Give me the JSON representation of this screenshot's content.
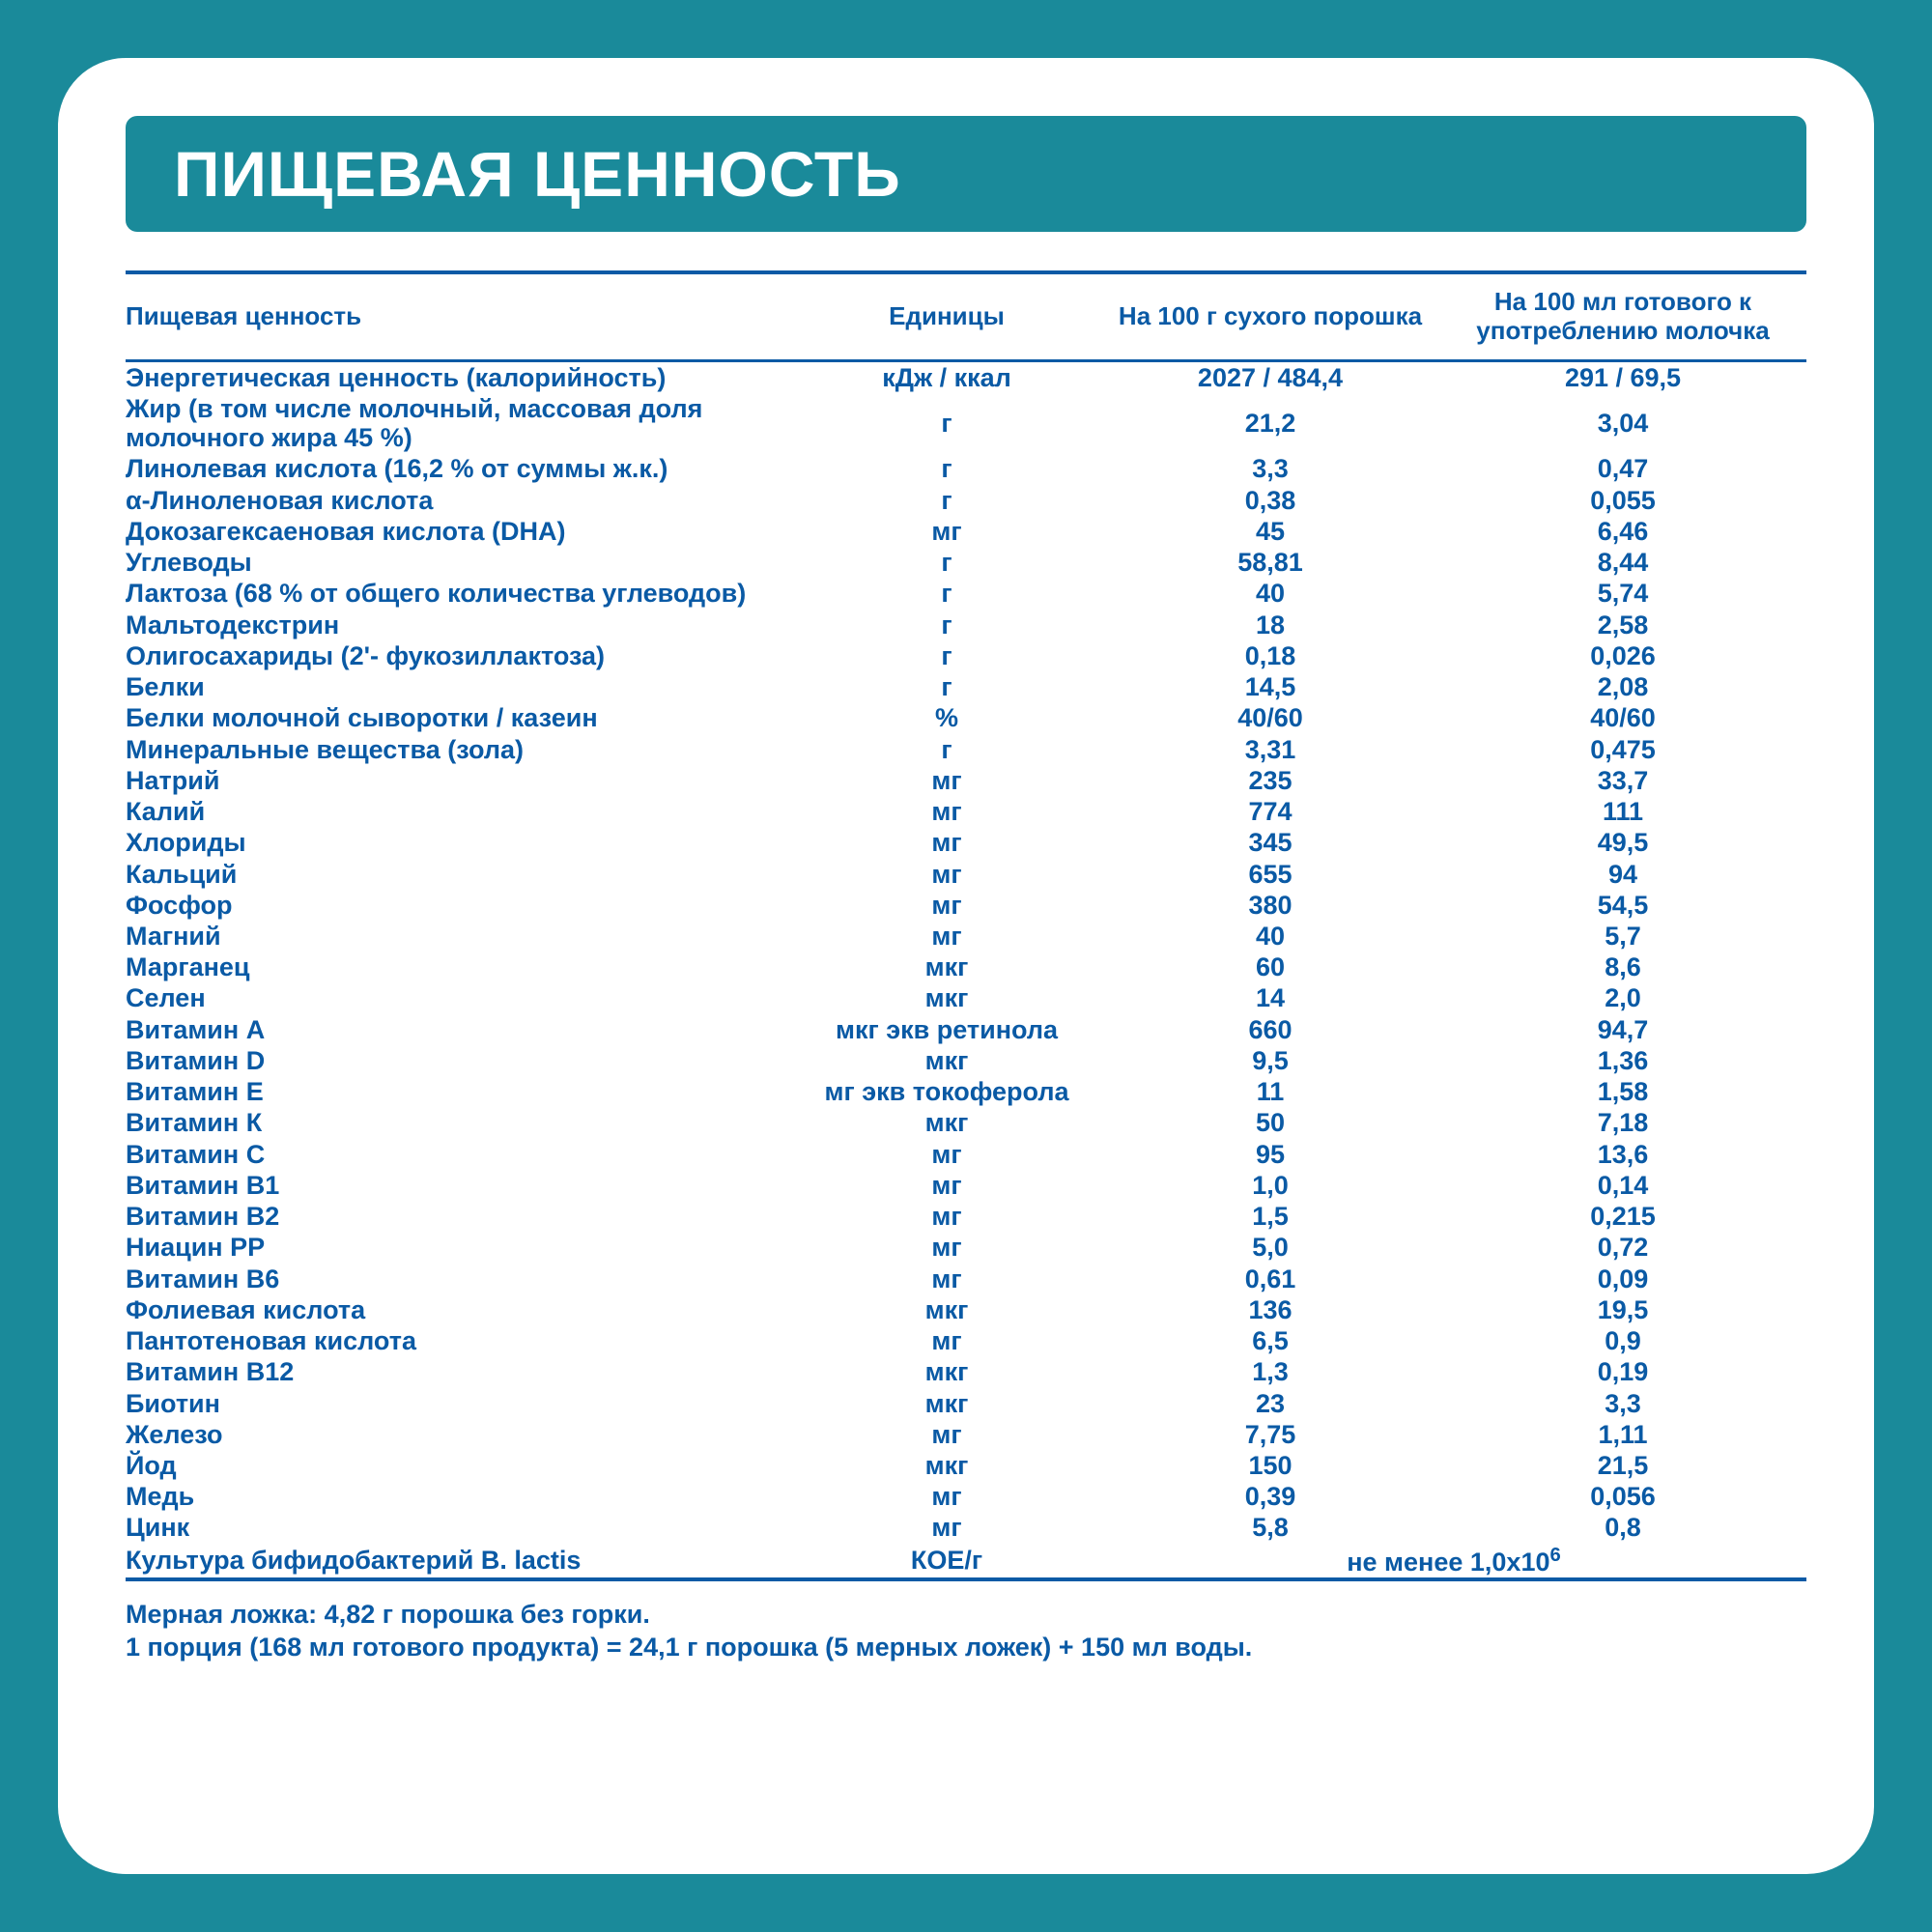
{
  "colors": {
    "teal": "#1a8a9a",
    "blue": "#0a5aa5",
    "white": "#ffffff"
  },
  "title": "ПИЩЕВАЯ ЦЕННОСТЬ",
  "columns": [
    "Пищевая ценность",
    "Единицы",
    "На 100 г сухого порошка",
    "На 100 мл готового к употреблению\nмолочка"
  ],
  "rows": [
    {
      "name": "Энергетическая ценность (калорийность)",
      "unit": "кДж / ккал",
      "v1": "2027 / 484,4",
      "v2": "291 / 69,5"
    },
    {
      "name": "Жир (в том числе молочный, массовая доля\nмолочного жира 45 %)",
      "unit": "г",
      "v1": "21,2",
      "v2": "3,04"
    },
    {
      "name": "Линолевая кислота (16,2 % от суммы ж.к.)",
      "unit": "г",
      "v1": "3,3",
      "v2": "0,47"
    },
    {
      "name": "α-Линоленовая кислота",
      "unit": "г",
      "v1": "0,38",
      "v2": "0,055"
    },
    {
      "name": "Докозагексаеновая кислота (DHA)",
      "unit": "мг",
      "v1": "45",
      "v2": "6,46"
    },
    {
      "name": "Углеводы",
      "unit": "г",
      "v1": "58,81",
      "v2": "8,44"
    },
    {
      "name": "Лактоза (68 % от общего количества углеводов)",
      "unit": "г",
      "v1": "40",
      "v2": "5,74"
    },
    {
      "name": "Мальтодекстрин",
      "unit": "г",
      "v1": "18",
      "v2": "2,58"
    },
    {
      "name": "Олигосахариды (2'- фукозиллактоза)",
      "unit": "г",
      "v1": "0,18",
      "v2": "0,026"
    },
    {
      "name": "Белки",
      "unit": "г",
      "v1": "14,5",
      "v2": "2,08"
    },
    {
      "name": "Белки молочной сыворотки / казеин",
      "unit": "%",
      "v1": "40/60",
      "v2": "40/60"
    },
    {
      "name": "Минеральные вещества (зола)",
      "unit": "г",
      "v1": "3,31",
      "v2": "0,475"
    },
    {
      "name": "Натрий",
      "unit": "мг",
      "v1": "235",
      "v2": "33,7"
    },
    {
      "name": "Калий",
      "unit": "мг",
      "v1": "774",
      "v2": "111"
    },
    {
      "name": "Хлориды",
      "unit": "мг",
      "v1": "345",
      "v2": "49,5"
    },
    {
      "name": "Кальций",
      "unit": "мг",
      "v1": "655",
      "v2": "94"
    },
    {
      "name": "Фосфор",
      "unit": "мг",
      "v1": "380",
      "v2": "54,5"
    },
    {
      "name": "Магний",
      "unit": "мг",
      "v1": "40",
      "v2": "5,7"
    },
    {
      "name": "Марганец",
      "unit": "мкг",
      "v1": "60",
      "v2": "8,6"
    },
    {
      "name": "Селен",
      "unit": "мкг",
      "v1": "14",
      "v2": "2,0"
    },
    {
      "name": "Витамин А",
      "unit": "мкг экв ретинола",
      "v1": "660",
      "v2": "94,7"
    },
    {
      "name": "Витамин D",
      "unit": "мкг",
      "v1": "9,5",
      "v2": "1,36"
    },
    {
      "name": "Витамин Е",
      "unit": "мг экв токоферола",
      "v1": "11",
      "v2": "1,58"
    },
    {
      "name": "Витамин К",
      "unit": "мкг",
      "v1": "50",
      "v2": "7,18"
    },
    {
      "name": "Витамин С",
      "unit": "мг",
      "v1": "95",
      "v2": "13,6"
    },
    {
      "name": "Витамин В1",
      "unit": "мг",
      "v1": "1,0",
      "v2": "0,14"
    },
    {
      "name": "Витамин В2",
      "unit": "мг",
      "v1": "1,5",
      "v2": "0,215"
    },
    {
      "name": "Ниацин РР",
      "unit": "мг",
      "v1": "5,0",
      "v2": "0,72"
    },
    {
      "name": "Витамин В6",
      "unit": "мг",
      "v1": "0,61",
      "v2": "0,09"
    },
    {
      "name": "Фолиевая кислота",
      "unit": "мкг",
      "v1": "136",
      "v2": "19,5"
    },
    {
      "name": "Пантотеновая кислота",
      "unit": "мг",
      "v1": "6,5",
      "v2": "0,9"
    },
    {
      "name": "Витамин В12",
      "unit": "мкг",
      "v1": "1,3",
      "v2": "0,19"
    },
    {
      "name": "Биотин",
      "unit": "мкг",
      "v1": "23",
      "v2": "3,3"
    },
    {
      "name": "Железо",
      "unit": "мг",
      "v1": "7,75",
      "v2": "1,11"
    },
    {
      "name": "Йод",
      "unit": "мкг",
      "v1": "150",
      "v2": "21,5"
    },
    {
      "name": "Медь",
      "unit": "мг",
      "v1": "0,39",
      "v2": "0,056"
    },
    {
      "name": "Цинк",
      "unit": "мг",
      "v1": "5,8",
      "v2": "0,8"
    }
  ],
  "wide_row": {
    "name": "Культура бифидобактерий B. lactis",
    "unit": "КОЕ/г",
    "value_html": "не менее 1,0x10<sup>6</sup>"
  },
  "footnotes": "Мерная ложка: 4,82 г порошка без горки.\n1 порция (168 мл готового продукта) = 24,1 г порошка (5 мерных ложек) + 150 мл воды."
}
